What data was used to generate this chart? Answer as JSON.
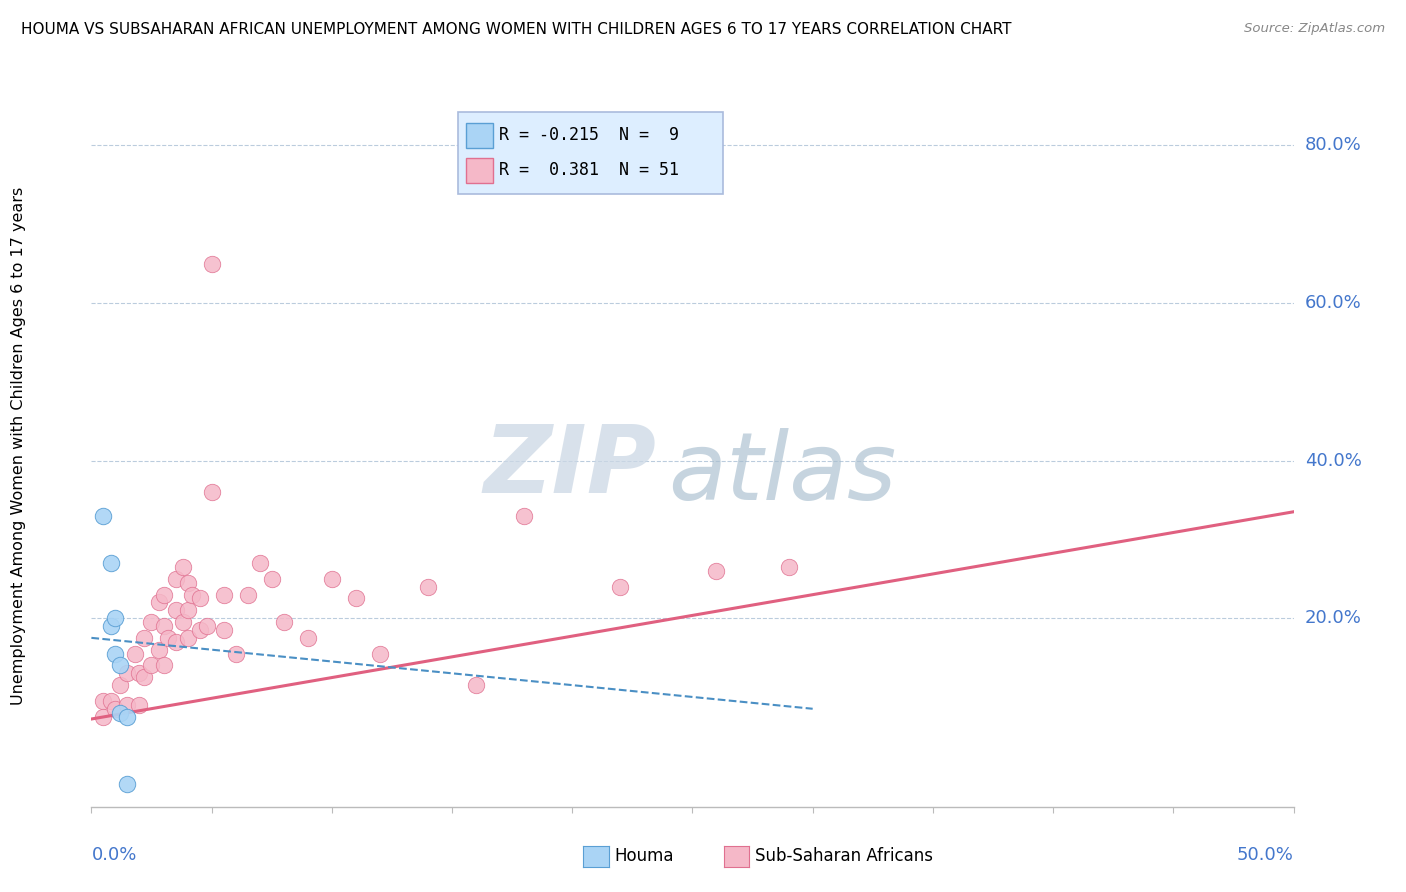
{
  "title": "HOUMA VS SUBSAHARAN AFRICAN UNEMPLOYMENT AMONG WOMEN WITH CHILDREN AGES 6 TO 17 YEARS CORRELATION CHART",
  "source": "Source: ZipAtlas.com",
  "ylabel_label": "Unemployment Among Women with Children Ages 6 to 17 years",
  "right_yticks": [
    0.2,
    0.4,
    0.6,
    0.8
  ],
  "right_ytick_labels": [
    "20.0%",
    "40.0%",
    "60.0%",
    "80.0%"
  ],
  "houma_R": -0.215,
  "houma_N": 9,
  "subafr_R": 0.381,
  "subafr_N": 51,
  "houma_color": "#aad4f5",
  "subafr_color": "#f5b8c8",
  "houma_edge_color": "#5a9fd4",
  "subafr_edge_color": "#e07090",
  "houma_line_color": "#4a8fc4",
  "subafr_line_color": "#e06080",
  "watermark_zip": "ZIP",
  "watermark_atlas": "atlas",
  "watermark_color_zip": "#c8d8e8",
  "watermark_color_atlas": "#a8c8d8",
  "legend_box_color": "#ddeeff",
  "legend_border_color": "#aabbdd",
  "houma_x": [
    0.005,
    0.008,
    0.008,
    0.01,
    0.01,
    0.012,
    0.012,
    0.015,
    0.015
  ],
  "houma_y": [
    0.33,
    0.27,
    0.19,
    0.2,
    0.155,
    0.14,
    0.08,
    0.075,
    -0.01
  ],
  "subafr_x": [
    0.005,
    0.005,
    0.008,
    0.01,
    0.012,
    0.015,
    0.015,
    0.018,
    0.02,
    0.02,
    0.022,
    0.022,
    0.025,
    0.025,
    0.028,
    0.028,
    0.03,
    0.03,
    0.03,
    0.032,
    0.035,
    0.035,
    0.035,
    0.038,
    0.038,
    0.04,
    0.04,
    0.04,
    0.042,
    0.045,
    0.045,
    0.048,
    0.05,
    0.05,
    0.055,
    0.055,
    0.06,
    0.065,
    0.07,
    0.075,
    0.08,
    0.09,
    0.1,
    0.11,
    0.12,
    0.14,
    0.16,
    0.18,
    0.22,
    0.26,
    0.29
  ],
  "subafr_y": [
    0.095,
    0.075,
    0.095,
    0.085,
    0.115,
    0.13,
    0.09,
    0.155,
    0.13,
    0.09,
    0.175,
    0.125,
    0.195,
    0.14,
    0.22,
    0.16,
    0.23,
    0.19,
    0.14,
    0.175,
    0.25,
    0.21,
    0.17,
    0.265,
    0.195,
    0.245,
    0.21,
    0.175,
    0.23,
    0.225,
    0.185,
    0.19,
    0.65,
    0.36,
    0.23,
    0.185,
    0.155,
    0.23,
    0.27,
    0.25,
    0.195,
    0.175,
    0.25,
    0.225,
    0.155,
    0.24,
    0.115,
    0.33,
    0.24,
    0.26,
    0.265
  ],
  "xlim": [
    0.0,
    0.5
  ],
  "ylim": [
    -0.04,
    0.86
  ],
  "subafr_line_x0": 0.0,
  "subafr_line_y0": 0.072,
  "subafr_line_x1": 0.5,
  "subafr_line_y1": 0.335,
  "houma_line_x0": 0.0,
  "houma_line_y0": 0.175,
  "houma_line_x1": 0.3,
  "houma_line_y1": 0.085
}
